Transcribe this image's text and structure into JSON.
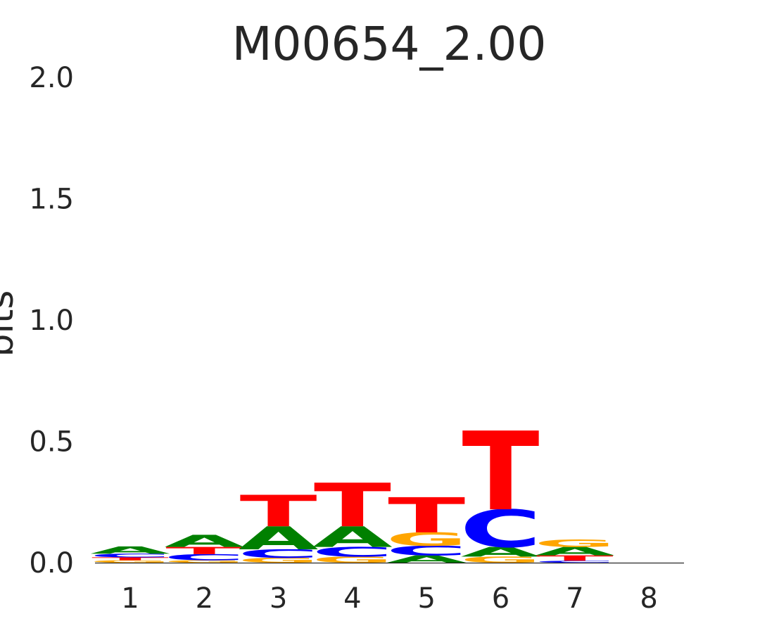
{
  "chart_data": {
    "type": "sequence-logo",
    "title": "M00654_2.00",
    "ylabel": "bits",
    "xlabel": "",
    "ylim": [
      0,
      2
    ],
    "y_ticks": [
      "0.0",
      "0.5",
      "1.0",
      "1.5",
      "2.0"
    ],
    "x_ticks": [
      "1",
      "2",
      "3",
      "4",
      "5",
      "6",
      "7",
      "8"
    ],
    "base_colors": {
      "A": "#008000",
      "C": "#0000ff",
      "G": "#ffa500",
      "T": "#ff0000"
    },
    "positions": [
      {
        "position": "1",
        "letters": [
          {
            "base": "G",
            "bits": 0.01
          },
          {
            "base": "T",
            "bits": 0.012
          },
          {
            "base": "C",
            "bits": 0.015
          },
          {
            "base": "A",
            "bits": 0.03
          }
        ]
      },
      {
        "position": "2",
        "letters": [
          {
            "base": "G",
            "bits": 0.01
          },
          {
            "base": "C",
            "bits": 0.025
          },
          {
            "base": "T",
            "bits": 0.03
          },
          {
            "base": "A",
            "bits": 0.05
          }
        ]
      },
      {
        "position": "3",
        "letters": [
          {
            "base": "G",
            "bits": 0.02
          },
          {
            "base": "C",
            "bits": 0.035
          },
          {
            "base": "A",
            "bits": 0.095
          },
          {
            "base": "T",
            "bits": 0.13
          }
        ]
      },
      {
        "position": "4",
        "letters": [
          {
            "base": "G",
            "bits": 0.025
          },
          {
            "base": "C",
            "bits": 0.04
          },
          {
            "base": "A",
            "bits": 0.085
          },
          {
            "base": "T",
            "bits": 0.18
          }
        ]
      },
      {
        "position": "5",
        "letters": [
          {
            "base": "A",
            "bits": 0.03
          },
          {
            "base": "C",
            "bits": 0.04
          },
          {
            "base": "G",
            "bits": 0.055
          },
          {
            "base": "T",
            "bits": 0.145
          }
        ]
      },
      {
        "position": "6",
        "letters": [
          {
            "base": "G",
            "bits": 0.025
          },
          {
            "base": "A",
            "bits": 0.04
          },
          {
            "base": "C",
            "bits": 0.155
          },
          {
            "base": "T",
            "bits": 0.325
          }
        ]
      },
      {
        "position": "7",
        "letters": [
          {
            "base": "C",
            "bits": 0.008
          },
          {
            "base": "T",
            "bits": 0.022
          },
          {
            "base": "A",
            "bits": 0.035
          },
          {
            "base": "G",
            "bits": 0.03
          }
        ]
      },
      {
        "position": "8",
        "letters": []
      }
    ]
  }
}
